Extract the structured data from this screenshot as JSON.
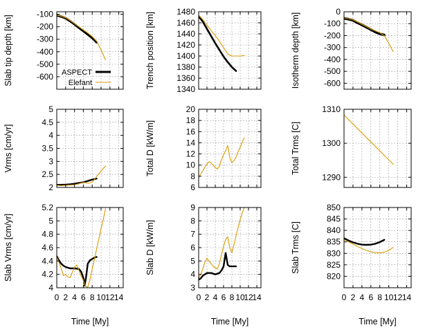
{
  "figure": {
    "xlabel": "Time [My]"
  },
  "legend": [
    {
      "name": "ASPECT",
      "color": "#000000"
    },
    {
      "name": "Elefant",
      "color": "#d99a00"
    }
  ],
  "chart_data": [
    {
      "type": "line",
      "ylabel": "Slab tip depth [km]",
      "xlim": [
        0,
        15
      ],
      "xticks": [
        0,
        2,
        4,
        6,
        8,
        10,
        12,
        14
      ],
      "ylim": [
        -700,
        -80
      ],
      "yticks": [
        -100,
        -200,
        -300,
        -400,
        -500,
        -600
      ],
      "legend_loc": "bottom-left",
      "grid": true,
      "series": [
        {
          "name": "ASPECT",
          "x": [
            0,
            1,
            2,
            3,
            4,
            5,
            6,
            7,
            8,
            9
          ],
          "y": [
            -110,
            -118,
            -132,
            -155,
            -180,
            -208,
            -235,
            -262,
            -290,
            -325
          ],
          "width": 3.2
        },
        {
          "name": "Elefant",
          "x": [
            0,
            1,
            2,
            3,
            4,
            5,
            6,
            7,
            8,
            9,
            10,
            11
          ],
          "y": [
            -108,
            -115,
            -128,
            -150,
            -175,
            -200,
            -225,
            -250,
            -278,
            -315,
            -385,
            -465
          ],
          "width": 1.1
        }
      ]
    },
    {
      "type": "line",
      "ylabel": "Trench position [km]",
      "xlim": [
        0,
        15
      ],
      "xticks": [
        0,
        2,
        4,
        6,
        8,
        10,
        12,
        14
      ],
      "ylim": [
        1340,
        1480
      ],
      "yticks": [
        1340,
        1360,
        1380,
        1400,
        1420,
        1440,
        1460,
        1480
      ],
      "grid": true,
      "series": [
        {
          "name": "ASPECT",
          "x": [
            0,
            1,
            2,
            3,
            4,
            5,
            6,
            7,
            8,
            9
          ],
          "y": [
            1472,
            1462,
            1449,
            1436,
            1423,
            1411,
            1399,
            1389,
            1380,
            1373
          ],
          "width": 2.6
        },
        {
          "name": "Elefant",
          "x": [
            0,
            1,
            2,
            3,
            4,
            5,
            6,
            7,
            8,
            9,
            10,
            11
          ],
          "y": [
            1474,
            1466,
            1456,
            1446,
            1437,
            1427,
            1415,
            1404,
            1400,
            1400,
            1400,
            1401
          ],
          "width": 1.1
        }
      ]
    },
    {
      "type": "line",
      "ylabel": "Isotherm depth [km]",
      "xlim": [
        0,
        15
      ],
      "xticks": [
        0,
        2,
        4,
        6,
        8,
        10,
        12,
        14
      ],
      "ylim": [
        -650,
        0
      ],
      "yticks": [
        0,
        -100,
        -200,
        -300,
        -400,
        -500,
        -600
      ],
      "grid": true,
      "series": [
        {
          "name": "ASPECT",
          "x": [
            0,
            1,
            2,
            3,
            4,
            5,
            6,
            7,
            8,
            8.5,
            9
          ],
          "y": [
            -55,
            -62,
            -72,
            -92,
            -110,
            -130,
            -150,
            -170,
            -185,
            -190,
            -195
          ],
          "width": 3.6
        },
        {
          "name": "Elefant",
          "x": [
            0,
            1,
            2,
            3,
            4,
            5,
            6,
            7,
            8,
            9,
            10,
            11
          ],
          "y": [
            -52,
            -58,
            -68,
            -85,
            -105,
            -125,
            -145,
            -160,
            -175,
            -200,
            -265,
            -335
          ],
          "width": 1.1
        }
      ]
    },
    {
      "type": "line",
      "ylabel": "Vrms [cm/yr]",
      "xlim": [
        0,
        15
      ],
      "xticks": [
        0,
        2,
        4,
        6,
        8,
        10,
        12,
        14
      ],
      "ylim": [
        2,
        5
      ],
      "yticks": [
        2,
        2.5,
        3,
        3.5,
        4,
        4.5,
        5
      ],
      "grid": true,
      "series": [
        {
          "name": "ASPECT",
          "x": [
            0,
            1,
            2,
            3,
            4,
            5,
            6,
            7,
            8,
            9
          ],
          "y": [
            2.1,
            2.1,
            2.11,
            2.12,
            2.14,
            2.17,
            2.2,
            2.25,
            2.3,
            2.34
          ],
          "width": 2.4
        },
        {
          "name": "Elefant",
          "x": [
            0,
            1,
            2,
            3,
            4,
            5,
            6,
            7,
            8,
            9,
            10,
            11
          ],
          "y": [
            2.08,
            2.07,
            2.08,
            2.09,
            2.1,
            2.14,
            2.2,
            2.16,
            2.2,
            2.42,
            2.63,
            2.82
          ],
          "width": 1.1
        }
      ]
    },
    {
      "type": "line",
      "ylabel": "Total D [kW/m]",
      "xlim": [
        0,
        15
      ],
      "xticks": [
        0,
        2,
        4,
        6,
        8,
        10,
        12,
        14
      ],
      "ylim": [
        6,
        20
      ],
      "yticks": [
        6,
        8,
        10,
        12,
        14,
        16,
        18,
        20
      ],
      "grid": true,
      "series": [
        {
          "name": "Elefant",
          "x": [
            0,
            0.5,
            1,
            1.5,
            2,
            2.5,
            3,
            3.5,
            4,
            4.5,
            5,
            5.5,
            6,
            6.5,
            7,
            7.5,
            8,
            8.5,
            9,
            9.5,
            10,
            10.5,
            11
          ],
          "y": [
            7.8,
            8.4,
            9.0,
            9.6,
            10.2,
            10.6,
            10.4,
            10.0,
            9.6,
            9.3,
            9.8,
            11.0,
            11.9,
            12.6,
            13.5,
            11.4,
            10.4,
            10.8,
            11.4,
            12.4,
            13.2,
            14.1,
            14.9
          ],
          "width": 1.1
        }
      ]
    },
    {
      "type": "line",
      "ylabel": "Total Trms [C]",
      "xlim": [
        0,
        15
      ],
      "xticks": [
        0,
        2,
        4,
        6,
        8,
        10,
        12,
        14
      ],
      "ylim": [
        1287,
        1310
      ],
      "yticks": [
        1290,
        1300,
        1310
      ],
      "grid": true,
      "series": [
        {
          "name": "Elefant",
          "x": [
            0,
            11
          ],
          "y": [
            1308.3,
            1293.8
          ],
          "width": 1.1
        }
      ]
    },
    {
      "type": "line",
      "ylabel": "Slab Vrms [cm/yr]",
      "xlim": [
        0,
        15
      ],
      "xticks": [
        0,
        2,
        4,
        6,
        8,
        10,
        12,
        14
      ],
      "ylim": [
        4,
        5.2
      ],
      "yticks": [
        4,
        4.2,
        4.4,
        4.6,
        4.8,
        5,
        5.2
      ],
      "grid": true,
      "series": [
        {
          "name": "ASPECT",
          "x": [
            0,
            0.5,
            1,
            1.5,
            2,
            3,
            4,
            5,
            5.5,
            6,
            6.3,
            6.6,
            7,
            7.5,
            8,
            8.5,
            9
          ],
          "y": [
            4.47,
            4.41,
            4.36,
            4.33,
            4.31,
            4.29,
            4.29,
            4.28,
            4.24,
            4.15,
            4.03,
            4.15,
            4.36,
            4.41,
            4.43,
            4.45,
            4.46
          ],
          "width": 2.4
        },
        {
          "name": "Elefant",
          "x": [
            0,
            0.5,
            1,
            1.5,
            2,
            2.5,
            3,
            3.5,
            4,
            4.5,
            5,
            5.5,
            6,
            6.5,
            7,
            7.5,
            8,
            8.5,
            9,
            9.5,
            10,
            10.5,
            11
          ],
          "y": [
            4.46,
            4.38,
            4.29,
            4.18,
            4.2,
            4.16,
            4.15,
            4.23,
            4.3,
            4.34,
            4.26,
            4.18,
            4.11,
            4.02,
            4.01,
            4.12,
            4.28,
            4.42,
            4.58,
            4.73,
            4.88,
            5.02,
            5.18
          ],
          "width": 1.1
        }
      ]
    },
    {
      "type": "line",
      "ylabel": "Slab D [kW/m]",
      "xlim": [
        0,
        15
      ],
      "xticks": [
        0,
        2,
        4,
        6,
        8,
        10,
        12,
        14
      ],
      "ylim": [
        3,
        9
      ],
      "yticks": [
        3,
        4,
        5,
        6,
        7,
        8,
        9
      ],
      "grid": true,
      "series": [
        {
          "name": "ASPECT",
          "x": [
            0,
            0.5,
            1,
            2,
            3,
            4,
            5,
            5.5,
            6,
            6.5,
            7,
            7.5,
            8,
            8.5,
            9
          ],
          "y": [
            3.6,
            3.7,
            3.9,
            4.1,
            4.1,
            4.0,
            4.1,
            4.3,
            4.6,
            5.6,
            4.7,
            4.6,
            4.6,
            4.6,
            4.6
          ],
          "width": 2.4
        },
        {
          "name": "Elefant",
          "x": [
            0,
            0.5,
            1,
            1.5,
            2,
            2.5,
            3,
            3.5,
            4,
            4.5,
            5,
            5.5,
            6,
            6.5,
            7,
            7.5,
            8,
            8.5,
            9,
            9.5,
            10,
            10.5,
            11
          ],
          "y": [
            3.7,
            4.0,
            4.4,
            4.9,
            5.2,
            5.0,
            4.8,
            4.6,
            4.5,
            4.4,
            4.8,
            5.5,
            6.1,
            6.6,
            6.8,
            6.0,
            5.6,
            6.2,
            6.9,
            7.5,
            8.1,
            8.6,
            9.0
          ],
          "width": 1.1
        }
      ]
    },
    {
      "type": "line",
      "ylabel": "Slab Trms [C]",
      "xlim": [
        0,
        15
      ],
      "xticks": [
        0,
        2,
        4,
        6,
        8,
        10,
        12,
        14
      ],
      "ylim": [
        815,
        850
      ],
      "yticks": [
        820,
        825,
        830,
        835,
        840,
        845,
        850
      ],
      "grid": true,
      "series": [
        {
          "name": "ASPECT",
          "x": [
            0,
            1,
            2,
            3,
            4,
            5,
            6,
            7,
            8,
            9
          ],
          "y": [
            836.6,
            835.6,
            834.8,
            834.2,
            833.8,
            833.7,
            833.8,
            834.2,
            834.9,
            835.9
          ],
          "width": 2.4
        },
        {
          "name": "Elefant",
          "x": [
            0,
            1,
            2,
            3,
            4,
            5,
            6,
            7,
            8,
            9,
            10,
            11
          ],
          "y": [
            836.0,
            835.0,
            834.0,
            833.0,
            832.1,
            831.3,
            830.7,
            830.3,
            830.2,
            830.5,
            831.3,
            832.6
          ],
          "width": 1.1
        }
      ]
    }
  ]
}
